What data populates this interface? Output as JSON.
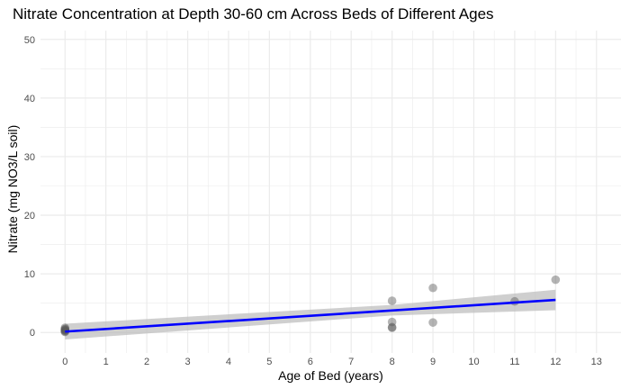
{
  "chart_data": {
    "type": "scatter",
    "title": "Nitrate Concentration at Depth 30-60 cm Across Beds of Different Ages",
    "xlabel": "Age of Bed (years)",
    "ylabel": "Nitrate (mg NO3/L soil)",
    "xlim": [
      -0.6,
      13.6
    ],
    "ylim": [
      -3.5,
      51.5
    ],
    "x_ticks": [
      0,
      1,
      2,
      3,
      4,
      5,
      6,
      7,
      8,
      9,
      10,
      11,
      12,
      13
    ],
    "y_ticks": [
      0,
      10,
      20,
      30,
      40,
      50
    ],
    "grid": true,
    "points": [
      {
        "x": 0,
        "y": 0.1
      },
      {
        "x": 0,
        "y": 0.2
      },
      {
        "x": 0,
        "y": 0.3
      },
      {
        "x": 0,
        "y": 0.4
      },
      {
        "x": 0,
        "y": 0.5
      },
      {
        "x": 0,
        "y": 0.6
      },
      {
        "x": 0,
        "y": 0.8
      },
      {
        "x": 8,
        "y": 0.8
      },
      {
        "x": 8,
        "y": 0.9
      },
      {
        "x": 8,
        "y": 1.8
      },
      {
        "x": 8,
        "y": 5.4
      },
      {
        "x": 9,
        "y": 1.7
      },
      {
        "x": 9,
        "y": 7.6
      },
      {
        "x": 11,
        "y": 5.3
      },
      {
        "x": 12,
        "y": 9.0
      }
    ],
    "trend_line": {
      "x": [
        0,
        12
      ],
      "y": [
        0.15,
        5.55
      ]
    },
    "confidence_band": {
      "x": [
        0,
        8,
        12
      ],
      "lower": [
        -1.2,
        2.9,
        3.8
      ],
      "upper": [
        1.5,
        4.7,
        7.3
      ]
    },
    "colors": {
      "points": "#595959",
      "trend_line": "#0000ff",
      "band": "#bfbfbf",
      "grid": "#ebebeb"
    }
  }
}
